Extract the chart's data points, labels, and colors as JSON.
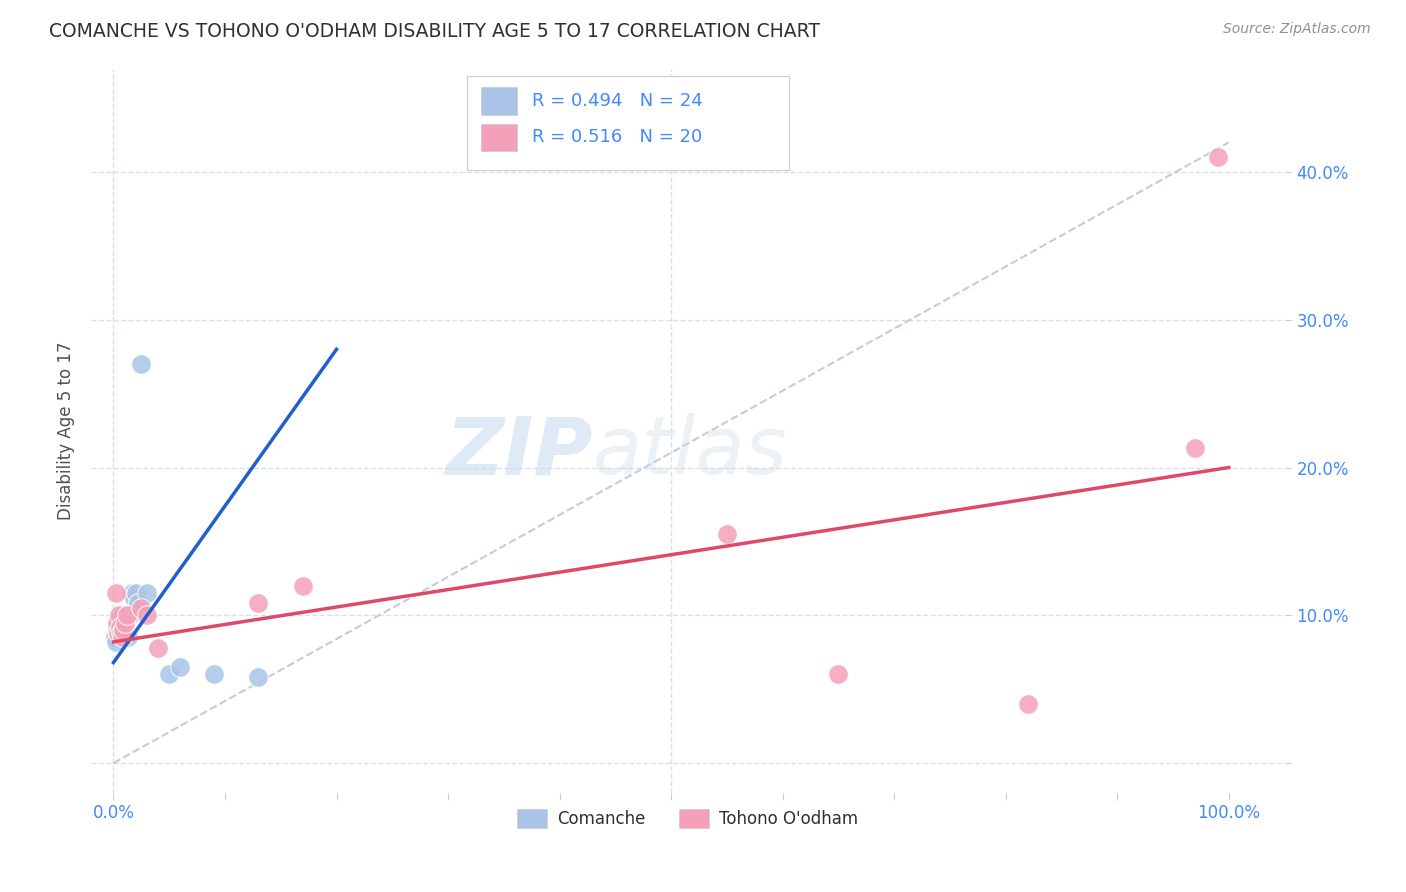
{
  "title": "COMANCHE VS TOHONO O'ODHAM DISABILITY AGE 5 TO 17 CORRELATION CHART",
  "source": "Source: ZipAtlas.com",
  "ylabel": "Disability Age 5 to 17",
  "comanche_R": 0.494,
  "comanche_N": 24,
  "tohono_R": 0.516,
  "tohono_N": 20,
  "comanche_color": "#aac4e8",
  "tohono_color": "#f4a0b8",
  "comanche_line_color": "#2060cc",
  "tohono_line_color": "#e04868",
  "ref_line_color": "#b8c4d4",
  "watermark_zip": "ZIP",
  "watermark_atlas": "atlas",
  "comanche_points": [
    [
      0.001,
      0.085
    ],
    [
      0.002,
      0.082
    ],
    [
      0.003,
      0.09
    ],
    [
      0.004,
      0.095
    ],
    [
      0.005,
      0.088
    ],
    [
      0.006,
      0.092
    ],
    [
      0.007,
      0.098
    ],
    [
      0.008,
      0.095
    ],
    [
      0.009,
      0.1
    ],
    [
      0.01,
      0.092
    ],
    [
      0.011,
      0.098
    ],
    [
      0.012,
      0.1
    ],
    [
      0.013,
      0.085
    ],
    [
      0.015,
      0.1
    ],
    [
      0.017,
      0.115
    ],
    [
      0.018,
      0.112
    ],
    [
      0.02,
      0.115
    ],
    [
      0.022,
      0.108
    ],
    [
      0.025,
      0.27
    ],
    [
      0.03,
      0.115
    ],
    [
      0.05,
      0.06
    ],
    [
      0.06,
      0.065
    ],
    [
      0.09,
      0.06
    ],
    [
      0.13,
      0.058
    ]
  ],
  "tohono_points": [
    [
      0.002,
      0.115
    ],
    [
      0.003,
      0.095
    ],
    [
      0.004,
      0.088
    ],
    [
      0.005,
      0.1
    ],
    [
      0.006,
      0.092
    ],
    [
      0.007,
      0.088
    ],
    [
      0.008,
      0.085
    ],
    [
      0.009,
      0.09
    ],
    [
      0.01,
      0.095
    ],
    [
      0.012,
      0.1
    ],
    [
      0.025,
      0.105
    ],
    [
      0.03,
      0.1
    ],
    [
      0.04,
      0.078
    ],
    [
      0.13,
      0.108
    ],
    [
      0.17,
      0.12
    ],
    [
      0.55,
      0.155
    ],
    [
      0.65,
      0.06
    ],
    [
      0.82,
      0.04
    ],
    [
      0.97,
      0.213
    ],
    [
      0.99,
      0.41
    ]
  ],
  "comanche_line": [
    0.0,
    0.068,
    0.2,
    0.28
  ],
  "tohono_line": [
    0.0,
    0.082,
    1.0,
    0.2
  ],
  "ref_line": [
    0.0,
    0.0,
    1.0,
    0.42
  ],
  "xlim": [
    -0.02,
    1.05
  ],
  "ylim": [
    -0.02,
    0.47
  ],
  "xticks": [
    0.0,
    0.1,
    0.2,
    0.3,
    0.4,
    0.5,
    0.6,
    0.7,
    0.8,
    0.9,
    1.0
  ],
  "yticks": [
    0.0,
    0.1,
    0.2,
    0.3,
    0.4
  ],
  "right_ytick_labels": [
    "",
    "10.0%",
    "20.0%",
    "30.0%",
    "40.0%"
  ],
  "left_ytick_labels": [
    "",
    "",
    "",
    "",
    ""
  ],
  "xtick_labels": [
    "0.0%",
    "",
    "",
    "",
    "",
    "",
    "",
    "",
    "",
    "",
    "100.0%"
  ],
  "bg_color": "#ffffff",
  "grid_color": "#d8e0ec",
  "title_color": "#303030",
  "axis_label_color": "#505050",
  "tick_color": "#4488ff",
  "legend_R_color": "#4488ff",
  "legend_patch_com": "#aac4e8",
  "legend_patch_toh": "#f4a0b8"
}
